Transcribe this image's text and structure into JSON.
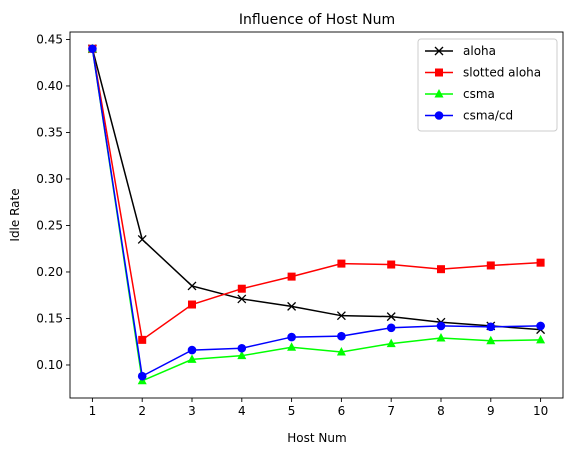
{
  "chart_data": {
    "type": "line",
    "title": "Influence of Host Num",
    "xlabel": "Host Num",
    "ylabel": "Idle Rate",
    "x": [
      1,
      2,
      3,
      4,
      5,
      6,
      7,
      8,
      9,
      10
    ],
    "xlim": [
      0.55,
      10.45
    ],
    "ylim": [
      0.0645,
      0.458
    ],
    "xticks": [
      1,
      2,
      3,
      4,
      5,
      6,
      7,
      8,
      9,
      10
    ],
    "yticks": [
      0.1,
      0.15,
      0.2,
      0.25,
      0.3,
      0.35,
      0.4,
      0.45
    ],
    "ytick_labels": [
      "0.10",
      "0.15",
      "0.20",
      "0.25",
      "0.30",
      "0.35",
      "0.40",
      "0.45"
    ],
    "grid": false,
    "legend_position": "top-right",
    "series": [
      {
        "name": "aloha",
        "color": "#000000",
        "marker": "x",
        "values": [
          0.44,
          0.235,
          0.185,
          0.171,
          0.163,
          0.153,
          0.152,
          0.146,
          0.142,
          0.138
        ]
      },
      {
        "name": "slotted aloha",
        "color": "#ff0000",
        "marker": "square",
        "values": [
          0.44,
          0.127,
          0.165,
          0.182,
          0.195,
          0.209,
          0.208,
          0.203,
          0.207,
          0.21
        ]
      },
      {
        "name": "csma",
        "color": "#00ff00",
        "marker": "triangle",
        "values": [
          0.44,
          0.083,
          0.106,
          0.11,
          0.119,
          0.114,
          0.123,
          0.129,
          0.126,
          0.127
        ]
      },
      {
        "name": "csma/cd",
        "color": "#0000ff",
        "marker": "circle",
        "values": [
          0.44,
          0.088,
          0.116,
          0.118,
          0.13,
          0.131,
          0.14,
          0.142,
          0.141,
          0.142
        ]
      }
    ]
  }
}
